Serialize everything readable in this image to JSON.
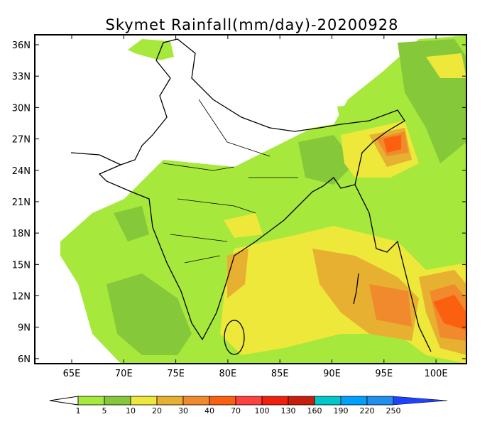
{
  "title": "Skymet Rainfall(mm/day)-20200928",
  "map": {
    "lat_ticks": [
      36,
      33,
      30,
      27,
      24,
      21,
      18,
      15,
      12,
      9,
      6
    ],
    "lon_ticks": [
      65,
      70,
      75,
      80,
      85,
      90,
      95,
      100
    ],
    "lat_suffix": "N",
    "lon_suffix": "E",
    "lon_range": [
      61.5,
      102.9
    ],
    "lat_range": [
      5.5,
      37
    ]
  },
  "legend": {
    "labels": [
      "1",
      "5",
      "10",
      "20",
      "30",
      "40",
      "70",
      "100",
      "130",
      "160",
      "190",
      "220",
      "250"
    ],
    "colors": [
      "#a6e83c",
      "#85c83a",
      "#ede83a",
      "#e8b030",
      "#f08a2c",
      "#fb6010",
      "#ff4040",
      "#f0200a",
      "#c81e0a",
      "#00c8c8",
      "#00a0ff",
      "#2090f0"
    ],
    "below_color": "#ffffff",
    "above_color": "#2040ff",
    "extra_label": "250"
  }
}
